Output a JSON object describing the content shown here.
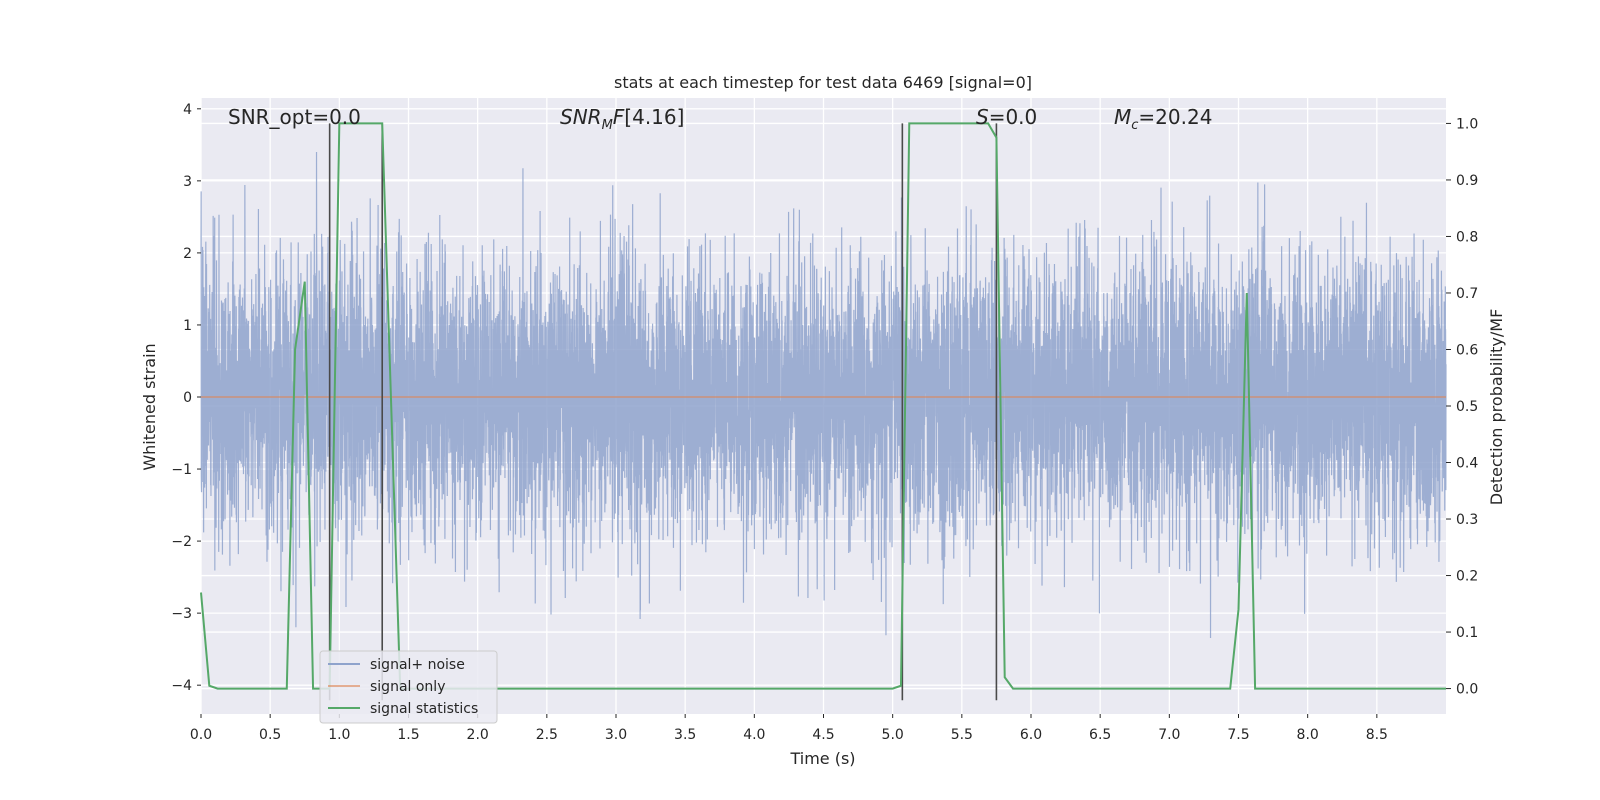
{
  "chart_data": {
    "type": "line",
    "title": "stats at each timestep for test data 6469 [signal=0]",
    "xlabel": "Time (s)",
    "ylabel": "Whitened strain",
    "y2label": "Detection probability/MF",
    "xlim": [
      0.0,
      9.0
    ],
    "ylim": [
      -4.4,
      4.15
    ],
    "y2lim": [
      -0.045,
      1.045
    ],
    "xticks": [
      0.0,
      0.5,
      1.0,
      1.5,
      2.0,
      2.5,
      3.0,
      3.5,
      4.0,
      4.5,
      5.0,
      5.5,
      6.0,
      6.5,
      7.0,
      7.5,
      8.0,
      8.5
    ],
    "xtick_labels": [
      "0.0",
      "0.5",
      "1.0",
      "1.5",
      "2.0",
      "2.5",
      "3.0",
      "3.5",
      "4.0",
      "4.5",
      "5.0",
      "5.5",
      "6.0",
      "6.5",
      "7.0",
      "7.5",
      "8.0",
      "8.5"
    ],
    "yticks": [
      -4,
      -3,
      -2,
      -1,
      0,
      1,
      2,
      3,
      4
    ],
    "ytick_labels": [
      "−4",
      "−3",
      "−2",
      "−1",
      "0",
      "1",
      "2",
      "3",
      "4"
    ],
    "y2ticks": [
      0.0,
      0.1,
      0.2,
      0.3,
      0.4,
      0.5,
      0.6,
      0.7,
      0.8,
      0.9,
      1.0
    ],
    "y2tick_labels": [
      "0.0",
      "0.1",
      "0.2",
      "0.3",
      "0.4",
      "0.5",
      "0.6",
      "0.7",
      "0.8",
      "0.9",
      "1.0"
    ],
    "grid": true,
    "legend_position": "lower-left",
    "colors": {
      "noise": "#8fa3cc",
      "signal": "#dd8452",
      "stats": "#55a868",
      "vline": "#4a4a4a",
      "background": "#eaeaf2",
      "grid": "#ffffff"
    },
    "annotations": {
      "snr_opt": "SNR_opt=0.0",
      "snr_mf": "[4.16]",
      "s_value": "=0.0",
      "mc_value": "=20.24"
    },
    "series": [
      {
        "name": "signal+ noise",
        "axis": "left",
        "description_range": [
          -3.9,
          3.4
        ],
        "samples": 9000
      },
      {
        "name": "signal only",
        "axis": "left",
        "x": [
          0.0,
          9.0
        ],
        "y": [
          0.0,
          0.0
        ]
      },
      {
        "name": "signal statistics",
        "axis": "right",
        "x": [
          0.0,
          0.06,
          0.12,
          0.62,
          0.68,
          0.75,
          0.81,
          0.93,
          1.0,
          1.31,
          1.44,
          5.0,
          5.06,
          5.12,
          5.69,
          5.75,
          5.81,
          5.87,
          7.44,
          7.5,
          7.56,
          7.62,
          9.0
        ],
        "y": [
          0.17,
          0.005,
          0.0,
          0.0,
          0.6,
          0.72,
          0.0,
          0.0,
          1.0,
          1.0,
          0.0,
          0.0,
          0.005,
          1.0,
          1.0,
          0.975,
          0.02,
          0.0,
          0.0,
          0.14,
          0.7,
          0.0,
          0.0
        ]
      }
    ],
    "vlines": [
      0.93,
      1.31,
      5.07,
      5.75
    ]
  }
}
